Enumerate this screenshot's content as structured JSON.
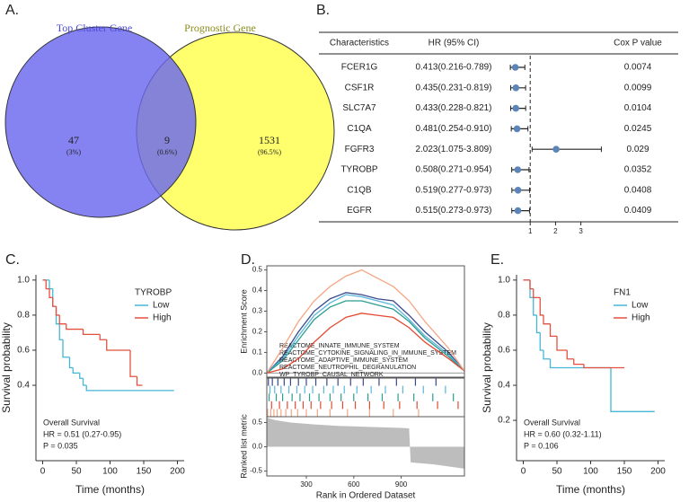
{
  "chart_data": [
    {
      "type": "venn",
      "panel_label": "A.",
      "sets": [
        {
          "name": "Top Cluster Gene",
          "color": "#6a68ee",
          "label_color": "#4b49d8"
        },
        {
          "name": "Prognostic Gene",
          "color": "#ffff6e",
          "label_color": "#8c8c1e"
        }
      ],
      "values": [
        47,
        9,
        1531
      ],
      "percent_labels": [
        "(3%)",
        "(0.6%)",
        "(96.5%)"
      ]
    },
    {
      "type": "forest",
      "panel_label": "B.",
      "columns": [
        "Characteristics",
        "HR (95% CI)",
        "Cox P value"
      ],
      "categories": [
        "FCER1G",
        "CSF1R",
        "SLC7A7",
        "C1QA",
        "FGFR3",
        "TYROBP",
        "C1QB",
        "EGFR"
      ],
      "values": [
        0.413,
        0.435,
        0.433,
        0.481,
        2.023,
        0.508,
        0.519,
        0.515
      ],
      "lower": [
        0.216,
        0.231,
        0.228,
        0.254,
        1.075,
        0.271,
        0.277,
        0.273
      ],
      "upper": [
        0.789,
        0.819,
        0.821,
        0.91,
        3.809,
        0.954,
        0.973,
        0.973
      ],
      "value_labels": [
        "0.413(0.216-0.789)",
        "0.435(0.231-0.819)",
        "0.433(0.228-0.821)",
        "0.481(0.254-0.910)",
        "2.023(1.075-3.809)",
        "0.508(0.271-0.954)",
        "0.519(0.277-0.973)",
        "0.515(0.273-0.973)"
      ],
      "p_values": [
        0.0074,
        0.0099,
        0.0104,
        0.0245,
        0.029,
        0.0352,
        0.0408,
        0.0409
      ],
      "xlim": [
        0,
        3.9
      ],
      "xticks": [
        1,
        2,
        3
      ],
      "reference": 1,
      "color": "#5b84b8"
    },
    {
      "type": "survival",
      "panel_label": "C.",
      "legend_title": "TYROBP",
      "xlabel": "Time (months)",
      "ylabel": "Survival probability",
      "xlim": [
        -10,
        210
      ],
      "ylim": [
        -0.03,
        1.03
      ],
      "xticks": [
        0,
        50,
        100,
        150,
        200
      ],
      "yticks": [
        0.4,
        0.6,
        0.8,
        {
          "value": 1,
          "label": "1.0"
        }
      ],
      "series": [
        {
          "name": "Low",
          "color": "#45b6d6",
          "x": [
            0,
            10,
            15,
            20,
            25,
            30,
            40,
            45,
            55,
            60,
            65,
            195
          ],
          "values": [
            1,
            0.95,
            0.85,
            0.75,
            0.66,
            0.56,
            0.5,
            0.47,
            0.44,
            0.4,
            0.37,
            0.37
          ]
        },
        {
          "name": "High",
          "color": "#e4503f",
          "x": [
            0,
            5,
            10,
            15,
            20,
            25,
            35,
            60,
            85,
            95,
            130,
            140,
            148
          ],
          "values": [
            1,
            0.95,
            0.9,
            0.85,
            0.8,
            0.75,
            0.72,
            0.69,
            0.66,
            0.6,
            0.45,
            0.4,
            0.4
          ]
        }
      ],
      "annotations": [
        "Overall Survival",
        "HR = 0.51 (0.27-0.95)",
        "P = 0.035"
      ]
    },
    {
      "type": "gsea",
      "panel_label": "D.",
      "xlabel": "Rank in Ordered Dataset",
      "ylabel": "Enrichment Score",
      "metric_label": "Ranked list metric",
      "xlim": [
        50,
        1300
      ],
      "xticks": [
        300,
        600,
        900
      ],
      "ylim": [
        -0.02,
        0.52
      ],
      "yticks": [
        {
          "value": 0,
          "label": "0.0"
        },
        0.1,
        0.2,
        0.3,
        0.4,
        0.5
      ],
      "x": [
        50,
        150,
        250,
        350,
        450,
        550,
        650,
        750,
        850,
        950,
        1050,
        1200,
        1300
      ],
      "series": [
        {
          "name": "REACTOME_INNATE_IMMUNE_SYSTEM",
          "color": "#3b4a8c",
          "values": [
            0,
            0.08,
            0.2,
            0.3,
            0.36,
            0.39,
            0.38,
            0.36,
            0.35,
            0.28,
            0.2,
            0.1,
            0.01
          ],
          "hits": [
            60,
            85,
            120,
            160,
            200,
            250,
            300,
            360,
            430,
            500,
            580,
            660,
            760,
            870,
            990,
            1120
          ]
        },
        {
          "name": "REACTOME_CYTOKINE_SIGNALING_IN_IMMUNE_SYSTEM",
          "color": "#59b7dc",
          "values": [
            0,
            0.07,
            0.18,
            0.28,
            0.34,
            0.38,
            0.37,
            0.35,
            0.33,
            0.26,
            0.18,
            0.09,
            0.01
          ],
          "hits": [
            70,
            100,
            140,
            190,
            240,
            290,
            340,
            410,
            470,
            540,
            620,
            710,
            800,
            910,
            1040,
            1180
          ]
        },
        {
          "name": "REACTOME_ADAPTIVE_IMMUNE_SYSTEM",
          "color": "#2a9d8f",
          "values": [
            0,
            0.06,
            0.16,
            0.26,
            0.32,
            0.35,
            0.35,
            0.33,
            0.31,
            0.25,
            0.17,
            0.08,
            0.01
          ],
          "hits": [
            65,
            110,
            150,
            210,
            260,
            320,
            380,
            450,
            520,
            600,
            690,
            780,
            880,
            980,
            1100,
            1230
          ]
        },
        {
          "name": "REACTOME_NEUTROPHIL_DEGRANULATION",
          "color": "#e34a33",
          "values": [
            0,
            0.02,
            0.07,
            0.15,
            0.22,
            0.27,
            0.29,
            0.28,
            0.27,
            0.22,
            0.15,
            0.07,
            0.01
          ],
          "hits": [
            80,
            130,
            180,
            230,
            280,
            330,
            390,
            460,
            530,
            610,
            700,
            790,
            890,
            1000,
            1130,
            1260
          ]
        },
        {
          "name": "WP_TYROBP_CAUSAL_NETWORK",
          "color": "#f4a582",
          "values": [
            0,
            0.12,
            0.25,
            0.35,
            0.42,
            0.47,
            0.5,
            0.46,
            0.42,
            0.35,
            0.25,
            0.12,
            0.01
          ],
          "hits": [
            55,
            75,
            95,
            115,
            140,
            170,
            205,
            245,
            300,
            370,
            450,
            560,
            700,
            850,
            1010
          ]
        }
      ],
      "metric_ylim": [
        -0.6,
        0.62
      ],
      "metric_yticks": [
        -0.5,
        {
          "value": 0,
          "label": "0.0"
        },
        0.5
      ],
      "metric_x": [
        50,
        100,
        200,
        350,
        500,
        700,
        900,
        950,
        960,
        1100,
        1300
      ],
      "metric_values": [
        0.6,
        0.55,
        0.5,
        0.46,
        0.43,
        0.41,
        0.39,
        0.38,
        -0.32,
        -0.36,
        -0.45
      ],
      "metric_color": "#bdbdbd"
    },
    {
      "type": "survival",
      "panel_label": "E.",
      "legend_title": "FN1",
      "xlabel": "Time (months)",
      "ylabel": "Survival probability",
      "xlim": [
        -10,
        210
      ],
      "ylim": [
        -0.03,
        1.03
      ],
      "xticks": [
        0,
        50,
        100,
        150,
        200
      ],
      "yticks": [
        0.2,
        0.4,
        0.6,
        0.8,
        {
          "value": 1,
          "label": "1.0"
        }
      ],
      "series": [
        {
          "name": "Low",
          "color": "#45b6d6",
          "x": [
            0,
            10,
            15,
            20,
            25,
            30,
            40,
            130,
            195
          ],
          "values": [
            1,
            0.9,
            0.8,
            0.7,
            0.6,
            0.55,
            0.5,
            0.25,
            0.25
          ]
        },
        {
          "name": "High",
          "color": "#e4503f",
          "x": [
            0,
            10,
            15,
            25,
            30,
            40,
            50,
            65,
            75,
            90,
            150
          ],
          "values": [
            1,
            0.95,
            0.9,
            0.8,
            0.75,
            0.68,
            0.6,
            0.55,
            0.52,
            0.5,
            0.5
          ]
        }
      ],
      "annotations": [
        "Overall Survival",
        "HR = 0.60 (0.32-1.11)",
        "P = 0.106"
      ]
    }
  ]
}
